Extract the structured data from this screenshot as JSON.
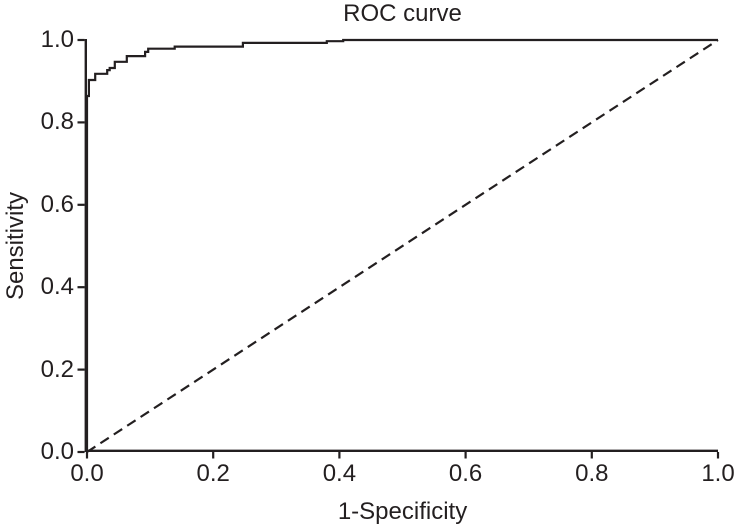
{
  "title": "ROC curve",
  "colors": {
    "line": "#231f20",
    "background": "#ffffff"
  },
  "chart_data": {
    "type": "line",
    "title": "ROC curve",
    "xlabel": "1-Specificity",
    "ylabel": "Sensitivity",
    "xlim": [
      0.0,
      1.0
    ],
    "ylim": [
      0.0,
      1.0
    ],
    "x_tick_labels": [
      "0.0",
      "0.2",
      "0.4",
      "0.6",
      "0.8",
      "1.0"
    ],
    "y_tick_labels": [
      "0.0",
      "0.2",
      "0.4",
      "0.6",
      "0.8",
      "1.0"
    ],
    "x_tick_values": [
      0.0,
      0.2,
      0.4,
      0.6,
      0.8,
      1.0
    ],
    "y_tick_values": [
      0.0,
      0.2,
      0.4,
      0.6,
      0.8,
      1.0
    ],
    "grid": false,
    "legend": false,
    "series": [
      {
        "name": "ROC curve",
        "line_style": "solid",
        "step": true,
        "color": "#231f20",
        "points": [
          [
            0.0,
            0.0
          ],
          [
            0.0,
            0.864
          ],
          [
            0.003,
            0.903
          ],
          [
            0.013,
            0.918
          ],
          [
            0.032,
            0.927
          ],
          [
            0.036,
            0.932
          ],
          [
            0.044,
            0.947
          ],
          [
            0.063,
            0.961
          ],
          [
            0.092,
            0.971
          ],
          [
            0.097,
            0.979
          ],
          [
            0.139,
            0.984
          ],
          [
            0.247,
            0.993
          ],
          [
            0.38,
            0.997
          ],
          [
            0.406,
            1.0
          ],
          [
            1.0,
            1.0
          ]
        ]
      },
      {
        "name": "chance reference diagonal",
        "line_style": "dashed",
        "step": false,
        "color": "#231f20",
        "points": [
          [
            0.0,
            0.0
          ],
          [
            1.0,
            1.0
          ]
        ]
      }
    ]
  }
}
